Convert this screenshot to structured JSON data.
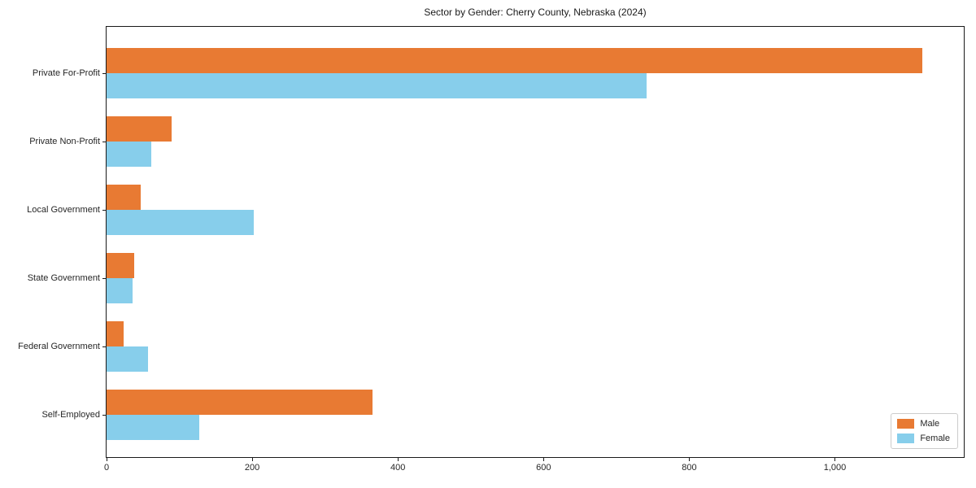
{
  "chart_data": {
    "type": "bar",
    "orientation": "horizontal",
    "title": "Sector by Gender: Cherry County, Nebraska (2024)",
    "categories": [
      "Private For-Profit",
      "Private Non-Profit",
      "Local Government",
      "State Government",
      "Federal Government",
      "Self-Employed"
    ],
    "series": [
      {
        "name": "Male",
        "color": "#e87a33",
        "values": [
          1120,
          89,
          47,
          38,
          24,
          365
        ]
      },
      {
        "name": "Female",
        "color": "#87ceeb",
        "values": [
          742,
          61,
          202,
          36,
          57,
          127
        ]
      }
    ],
    "xlim": [
      0,
      1177
    ],
    "x_ticks": [
      0,
      200,
      400,
      600,
      800,
      1000
    ],
    "x_tick_labels": [
      "0",
      "200",
      "400",
      "600",
      "800",
      "1,000"
    ],
    "ylabel": "",
    "xlabel": "",
    "grid": false,
    "legend_position": "lower right"
  }
}
